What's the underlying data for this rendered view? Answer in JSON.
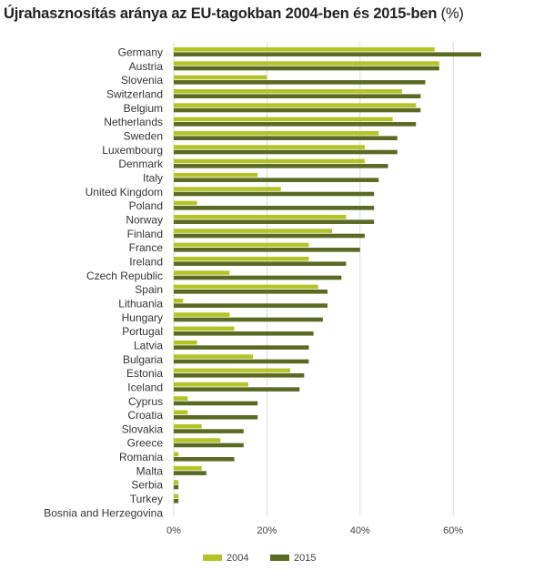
{
  "title": {
    "main": "Újrahasznosítás aránya az EU-tagokban 2004-ben és 2015-ben",
    "unit": "(%)"
  },
  "colors": {
    "series_2004": "#b4c427",
    "series_2015": "#5a6a23",
    "grid": "#d9d9d9"
  },
  "chart_data": {
    "type": "bar",
    "orientation": "horizontal",
    "title": "Újrahasznosítás aránya az EU-tagokban 2004-ben és 2015-ben (%)",
    "categories": [
      "Germany",
      "Austria",
      "Slovenia",
      "Switzerland",
      "Belgium",
      "Netherlands",
      "Sweden",
      "Luxembourg",
      "Denmark",
      "Italy",
      "United Kingdom",
      "Poland",
      "Norway",
      "Finland",
      "France",
      "Ireland",
      "Czech Republic",
      "Spain",
      "Lithuania",
      "Hungary",
      "Portugal",
      "Latvia",
      "Bulgaria",
      "Estonia",
      "Iceland",
      "Cyprus",
      "Croatia",
      "Slovakia",
      "Greece",
      "Romania",
      "Malta",
      "Serbia",
      "Turkey",
      "Bosnia and Herzegovina"
    ],
    "series": [
      {
        "name": "2004",
        "values": [
          56,
          57,
          20,
          49,
          52,
          47,
          44,
          41,
          41,
          18,
          23,
          5,
          37,
          34,
          29,
          29,
          12,
          31,
          2,
          12,
          13,
          5,
          17,
          25,
          16,
          3,
          3,
          6,
          10,
          1,
          6,
          1,
          1,
          0
        ]
      },
      {
        "name": "2015",
        "values": [
          66,
          57,
          54,
          53,
          53,
          52,
          48,
          48,
          46,
          44,
          43,
          43,
          43,
          41,
          40,
          37,
          36,
          33,
          33,
          32,
          30,
          29,
          29,
          28,
          27,
          18,
          18,
          15,
          15,
          13,
          7,
          1,
          1,
          0
        ]
      }
    ],
    "xlim": [
      0,
      70
    ],
    "xticks": [
      "0%",
      "20%",
      "40%",
      "60%"
    ],
    "xtick_values": [
      0,
      20,
      40,
      60
    ],
    "grid": true,
    "legend": {
      "position": "bottom",
      "entries": [
        "2004",
        "2015"
      ]
    }
  }
}
